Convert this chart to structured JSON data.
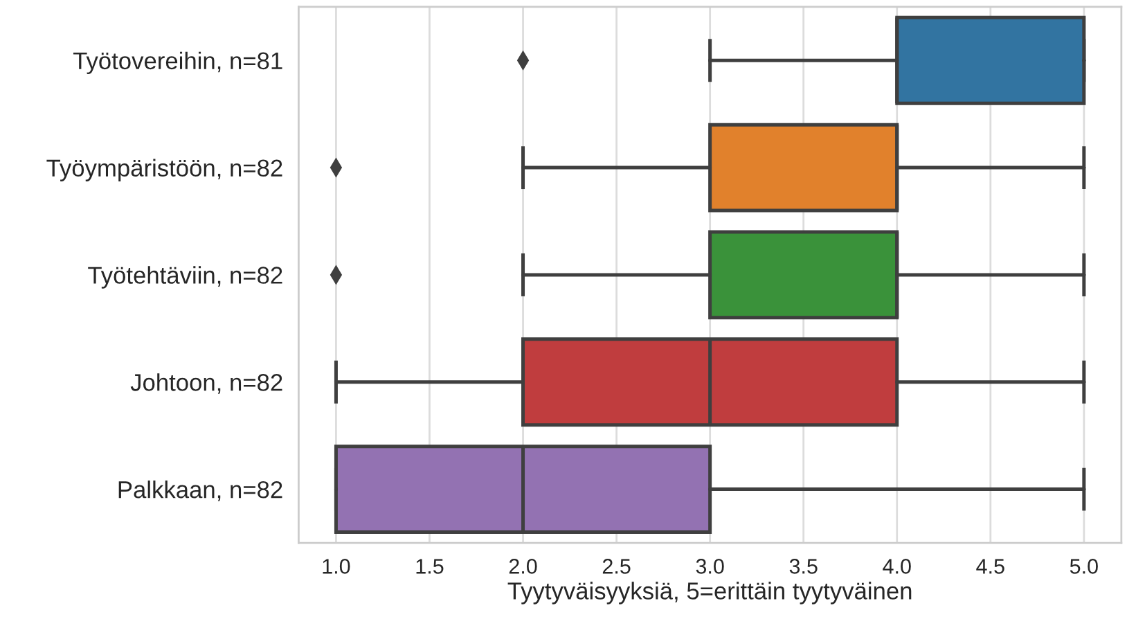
{
  "chart_data": {
    "type": "box",
    "orientation": "horizontal",
    "categories": [
      "Työtovereihin, n=81",
      "Työympäristöön, n=82",
      "Työtehtäviin, n=82",
      "Johtoon, n=82",
      "Palkkaan, n=82"
    ],
    "xlabel": "Tyytyväisyyksiä, 5=erittäin tyytyväinen",
    "boxes": [
      {
        "low": 3,
        "q1": 4,
        "median": 4,
        "q3": 5,
        "high": 5,
        "outliers": [
          2
        ]
      },
      {
        "low": 2,
        "q1": 3,
        "median": 4,
        "q3": 4,
        "high": 5,
        "outliers": [
          1
        ]
      },
      {
        "low": 2,
        "q1": 3,
        "median": 4,
        "q3": 4,
        "high": 5,
        "outliers": [
          1
        ]
      },
      {
        "low": 1,
        "q1": 2,
        "median": 3,
        "q3": 4,
        "high": 5
      },
      {
        "low": 1,
        "q1": 1,
        "median": 2,
        "q3": 3,
        "high": 5
      }
    ],
    "colors": [
      "#3274a1",
      "#e1812c",
      "#3a923a",
      "#c03d3e",
      "#9372b2"
    ],
    "xlim": [
      0.8,
      5.2
    ],
    "xticks": [
      {
        "value": 1,
        "label": "1.0"
      },
      {
        "value": 1.5,
        "label": "1.5"
      },
      {
        "value": 2,
        "label": "2.0"
      },
      {
        "value": 2.5,
        "label": "2.5"
      },
      {
        "value": 3,
        "label": "3.0"
      },
      {
        "value": 3.5,
        "label": "3.5"
      },
      {
        "value": 4,
        "label": "4.0"
      },
      {
        "value": 4.5,
        "label": "4.5"
      },
      {
        "value": 5,
        "label": "5.0"
      }
    ],
    "grid": "x",
    "marker": "diamond"
  }
}
